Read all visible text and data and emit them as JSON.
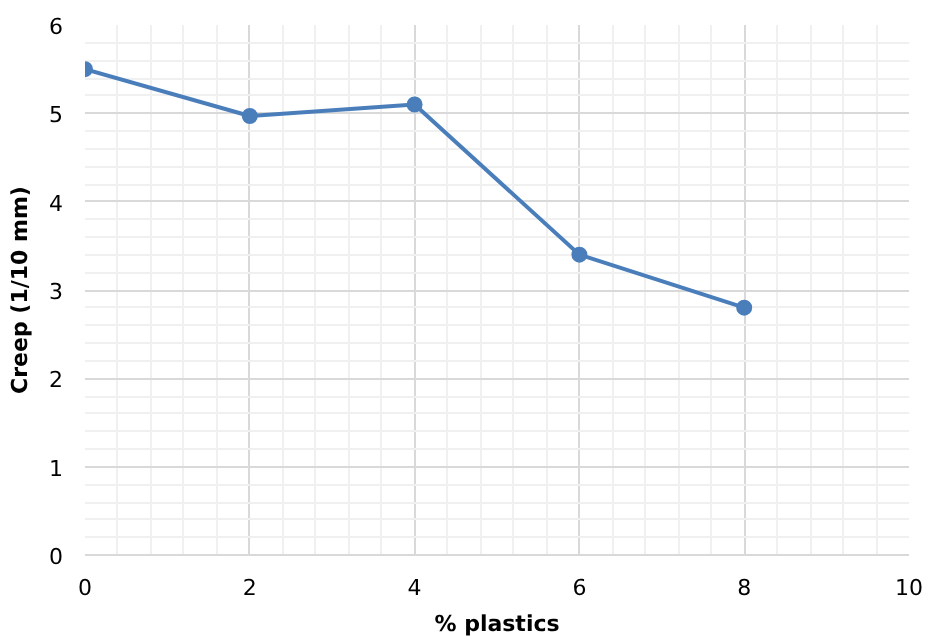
{
  "chart_data": {
    "type": "line",
    "xlabel": "% plastics",
    "ylabel": "Creep (1/10 mm)",
    "x": [
      0,
      2,
      4,
      6,
      8
    ],
    "series": [
      {
        "color": "#4a7ebb",
        "values": [
          5.5,
          4.97,
          5.1,
          3.4,
          2.8
        ]
      }
    ],
    "xlim": [
      0,
      10
    ],
    "ylim": [
      0,
      6
    ],
    "xticks": [
      0,
      2,
      4,
      6,
      8,
      10
    ],
    "yticks": [
      0,
      1,
      2,
      3,
      4,
      5,
      6
    ],
    "grid": true,
    "marker": "circle",
    "line_style": "solid"
  }
}
